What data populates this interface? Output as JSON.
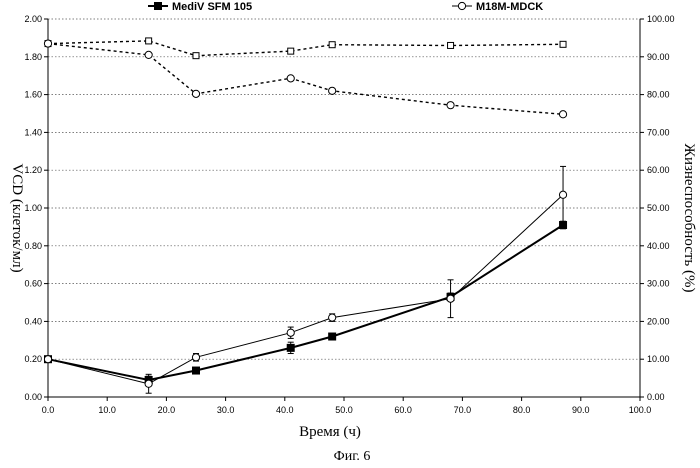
{
  "chart_data": {
    "type": "line",
    "caption": "Фиг. 6",
    "xlabel": "Время (ч)",
    "ylabel": "VCD (клеток/мл)",
    "y2label": "Жизнеспособность (%)",
    "xlim": [
      0,
      100
    ],
    "ylim": [
      0,
      2
    ],
    "y2lim": [
      0,
      100
    ],
    "x_ticks": [
      "0.0",
      "10.0",
      "20.0",
      "30.0",
      "40.0",
      "50.0",
      "60.0",
      "70.0",
      "80.0",
      "90.0",
      "100.0"
    ],
    "y_ticks": [
      "0.00",
      "0.20",
      "0.40",
      "0.60",
      "0.80",
      "1.00",
      "1.20",
      "1.40",
      "1.60",
      "1.80",
      "2.00"
    ],
    "y2_ticks": [
      "0.00",
      "10.00",
      "20.00",
      "30.00",
      "40.00",
      "50.00",
      "60.00",
      "70.00",
      "80.00",
      "90.00",
      "100.00"
    ],
    "grid": "horizontal dotted",
    "legend": {
      "placement": "top",
      "entries": [
        {
          "name": "MediV SFM 105",
          "marker": "square-filled"
        },
        {
          "name": "M18M-MDCK",
          "marker": "circle-open"
        }
      ]
    },
    "series": [
      {
        "name": "MediV SFM 105",
        "axis": "left",
        "line": "solid",
        "line_weight": "heavy",
        "marker": "square-filled",
        "x": [
          0,
          17,
          25,
          41,
          48,
          68,
          87
        ],
        "y": [
          0.2,
          0.09,
          0.14,
          0.26,
          0.32,
          0.53,
          0.91
        ],
        "error": [
          0.01,
          0.02,
          0.01,
          0.03,
          0.01,
          0.02,
          0.02
        ]
      },
      {
        "name": "M18M-MDCK",
        "axis": "left",
        "line": "solid",
        "line_weight": "thin",
        "marker": "circle-open",
        "x": [
          0,
          17,
          25,
          41,
          48,
          68,
          87
        ],
        "y": [
          0.2,
          0.07,
          0.21,
          0.34,
          0.42,
          0.52,
          1.07
        ],
        "error": [
          0.0,
          0.05,
          0.02,
          0.03,
          0.02,
          0.1,
          0.15
        ]
      },
      {
        "name": "MediV SFM 105",
        "axis": "right",
        "line": "dashed",
        "marker": "square-open",
        "x": [
          0,
          17,
          25,
          41,
          48,
          68,
          87
        ],
        "y": [
          93.5,
          94.2,
          90.3,
          91.5,
          93.2,
          93.0,
          93.3
        ]
      },
      {
        "name": "M18M-MDCK",
        "axis": "right",
        "line": "dashed",
        "marker": "circle-open",
        "x": [
          0,
          17,
          25,
          41,
          48,
          68,
          87
        ],
        "y": [
          93.5,
          90.5,
          80.2,
          84.3,
          81.0,
          77.2,
          74.8
        ]
      }
    ]
  }
}
